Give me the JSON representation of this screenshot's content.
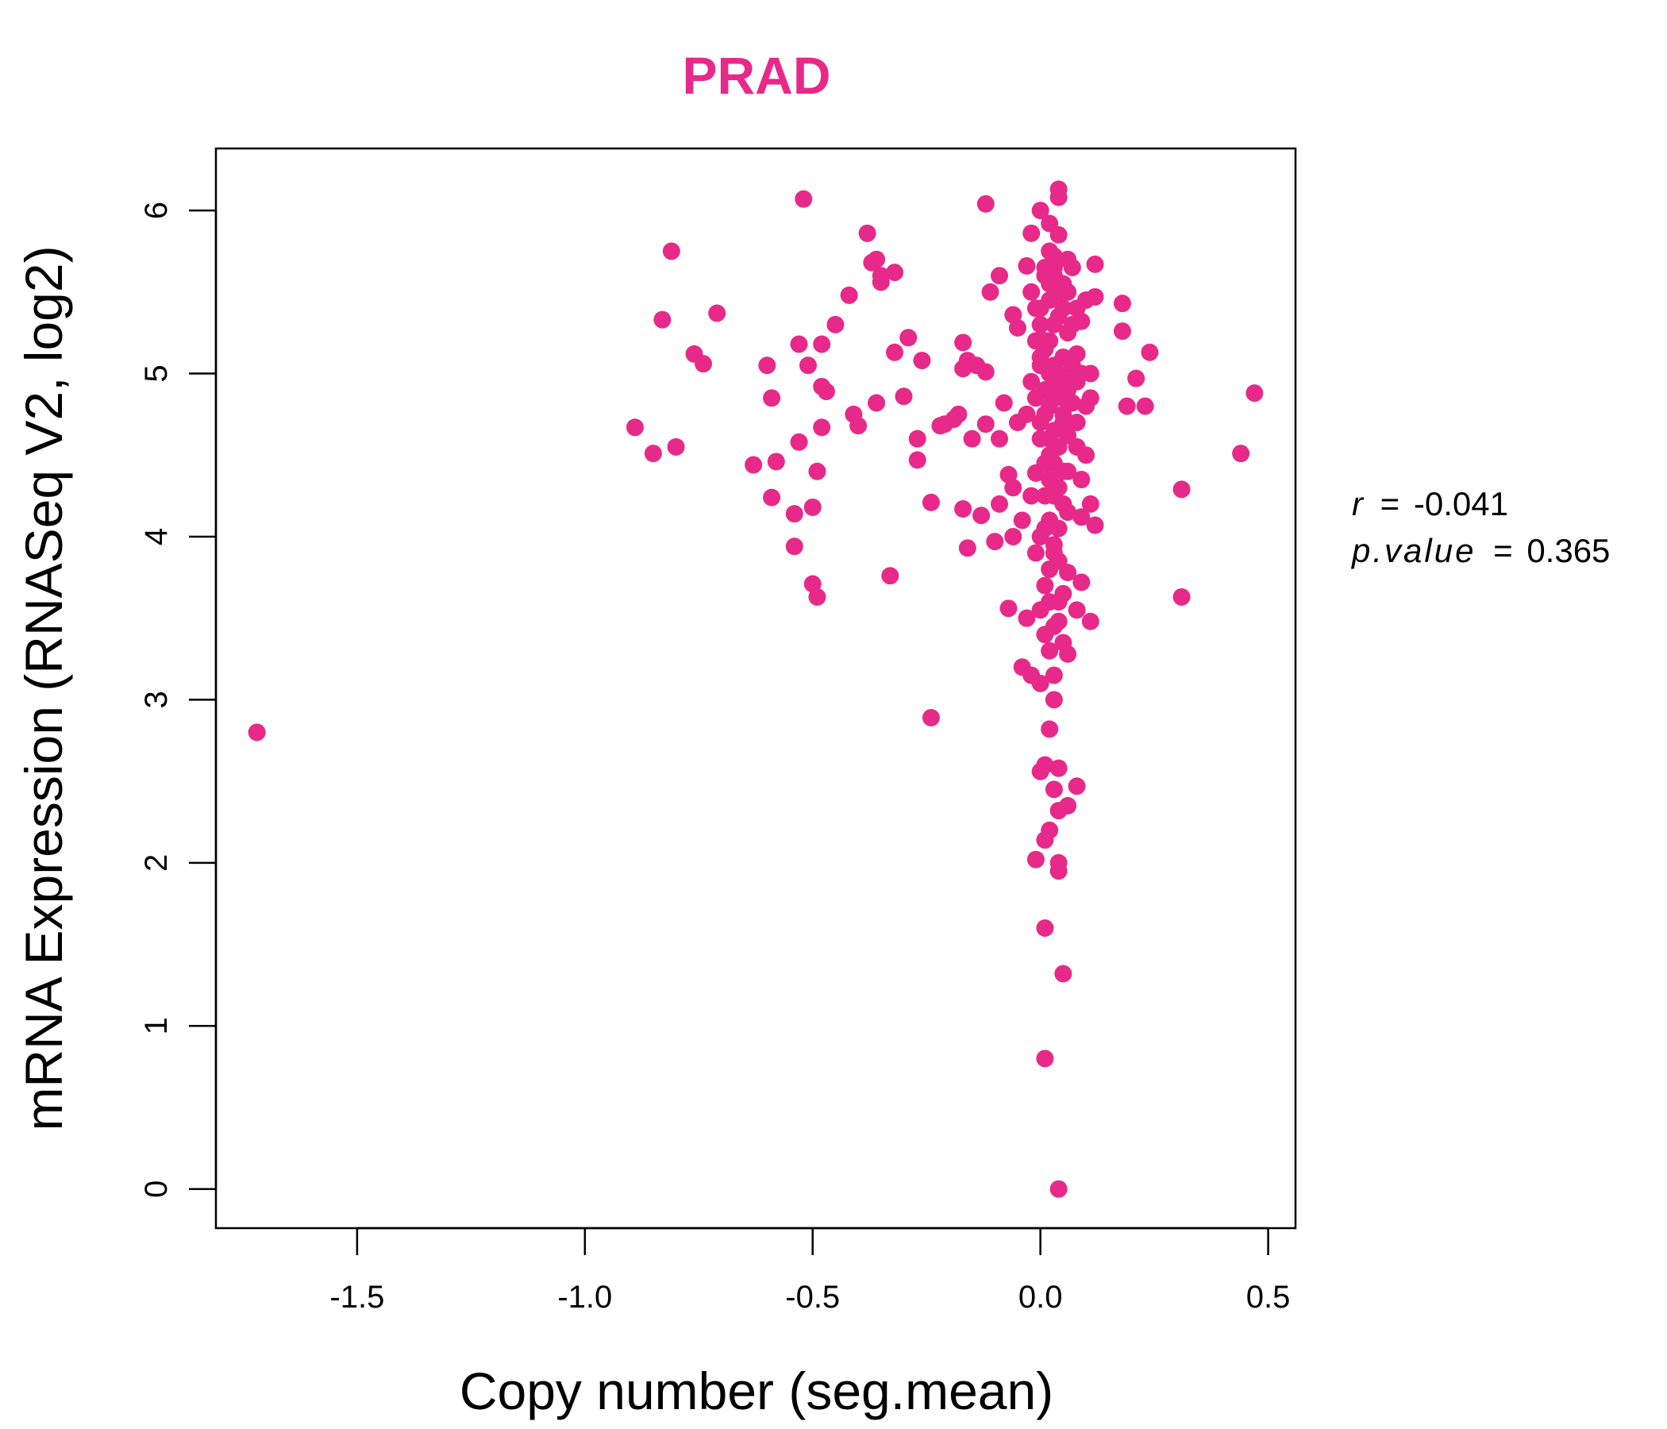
{
  "chart_data": {
    "type": "scatter",
    "title": "PRAD",
    "xlabel": "Copy number (seg.mean)",
    "ylabel": "mRNA Expression (RNASeq V2, log2)",
    "xlim": [
      -1.81,
      0.56
    ],
    "ylim": [
      -0.24,
      6.38
    ],
    "x_ticks": [
      -1.5,
      -1.0,
      -0.5,
      0.0,
      0.5
    ],
    "x_tick_labels": [
      "-1.5",
      "-1.0",
      "-0.5",
      "0.0",
      "0.5"
    ],
    "y_ticks": [
      0,
      1,
      2,
      3,
      4,
      5,
      6
    ],
    "y_tick_labels": [
      "0",
      "1",
      "2",
      "3",
      "4",
      "5",
      "6"
    ],
    "color": "#e7298a",
    "stats": {
      "r_label": "r",
      "r_value": "-0.041",
      "p_label": "p.value",
      "p_value": "0.365"
    },
    "points": [
      [
        -1.72,
        2.8
      ],
      [
        -0.89,
        4.67
      ],
      [
        -0.85,
        4.51
      ],
      [
        -0.83,
        5.33
      ],
      [
        -0.81,
        5.75
      ],
      [
        -0.8,
        4.55
      ],
      [
        -0.76,
        5.12
      ],
      [
        -0.74,
        5.06
      ],
      [
        -0.71,
        5.37
      ],
      [
        -0.63,
        4.44
      ],
      [
        -0.6,
        5.05
      ],
      [
        -0.59,
        4.85
      ],
      [
        -0.59,
        4.24
      ],
      [
        -0.58,
        4.46
      ],
      [
        -0.54,
        4.14
      ],
      [
        -0.54,
        3.94
      ],
      [
        -0.53,
        5.18
      ],
      [
        -0.53,
        4.58
      ],
      [
        -0.52,
        6.07
      ],
      [
        -0.51,
        5.05
      ],
      [
        -0.5,
        3.71
      ],
      [
        -0.5,
        4.18
      ],
      [
        -0.49,
        4.4
      ],
      [
        -0.49,
        3.63
      ],
      [
        -0.48,
        5.18
      ],
      [
        -0.48,
        4.67
      ],
      [
        -0.48,
        4.92
      ],
      [
        -0.47,
        4.89
      ],
      [
        -0.45,
        5.3
      ],
      [
        -0.42,
        5.48
      ],
      [
        -0.41,
        4.75
      ],
      [
        -0.4,
        4.68
      ],
      [
        -0.38,
        5.86
      ],
      [
        -0.37,
        5.68
      ],
      [
        -0.36,
        4.82
      ],
      [
        -0.36,
        5.7
      ],
      [
        -0.35,
        5.6
      ],
      [
        -0.35,
        5.56
      ],
      [
        -0.33,
        3.76
      ],
      [
        -0.32,
        5.62
      ],
      [
        -0.32,
        5.13
      ],
      [
        -0.29,
        5.22
      ],
      [
        -0.3,
        4.86
      ],
      [
        -0.27,
        4.6
      ],
      [
        -0.27,
        4.47
      ],
      [
        -0.26,
        5.08
      ],
      [
        -0.24,
        4.21
      ],
      [
        -0.24,
        2.89
      ],
      [
        -0.22,
        4.68
      ],
      [
        -0.21,
        4.69
      ],
      [
        -0.19,
        4.72
      ],
      [
        -0.18,
        4.75
      ],
      [
        -0.17,
        4.17
      ],
      [
        -0.17,
        5.19
      ],
      [
        -0.17,
        5.03
      ],
      [
        -0.16,
        3.93
      ],
      [
        -0.16,
        5.08
      ],
      [
        -0.15,
        4.6
      ],
      [
        -0.14,
        5.05
      ],
      [
        -0.13,
        4.13
      ],
      [
        -0.12,
        6.04
      ],
      [
        -0.12,
        5.01
      ],
      [
        -0.12,
        4.69
      ],
      [
        -0.11,
        5.5
      ],
      [
        -0.1,
        3.97
      ],
      [
        -0.09,
        5.6
      ],
      [
        -0.09,
        4.6
      ],
      [
        -0.09,
        4.2
      ],
      [
        -0.08,
        4.82
      ],
      [
        -0.07,
        4.38
      ],
      [
        -0.07,
        3.56
      ],
      [
        -0.06,
        5.36
      ],
      [
        -0.06,
        4.3
      ],
      [
        -0.06,
        4.0
      ],
      [
        -0.05,
        5.28
      ],
      [
        -0.05,
        4.7
      ],
      [
        -0.04,
        3.2
      ],
      [
        -0.04,
        4.1
      ],
      [
        -0.03,
        3.5
      ],
      [
        -0.03,
        5.66
      ],
      [
        -0.02,
        5.86
      ],
      [
        -0.02,
        3.15
      ],
      [
        -0.02,
        4.25
      ],
      [
        -0.01,
        3.9
      ],
      [
        -0.01,
        2.02
      ],
      [
        -0.01,
        4.39
      ],
      [
        0.0,
        6.0
      ],
      [
        0.0,
        3.1
      ],
      [
        0.0,
        2.56
      ],
      [
        0.0,
        4.0
      ],
      [
        0.0,
        4.7
      ],
      [
        0.0,
        5.05
      ],
      [
        0.0,
        5.4
      ],
      [
        0.01,
        2.14
      ],
      [
        0.01,
        3.4
      ],
      [
        0.01,
        1.6
      ],
      [
        0.01,
        0.8
      ],
      [
        0.01,
        2.6
      ],
      [
        0.01,
        3.7
      ],
      [
        0.01,
        4.25
      ],
      [
        0.01,
        4.9
      ],
      [
        0.01,
        5.2
      ],
      [
        0.01,
        5.6
      ],
      [
        0.02,
        5.92
      ],
      [
        0.02,
        3.3
      ],
      [
        0.02,
        2.2
      ],
      [
        0.02,
        2.82
      ],
      [
        0.02,
        3.6
      ],
      [
        0.02,
        4.1
      ],
      [
        0.02,
        4.6
      ],
      [
        0.02,
        5.0
      ],
      [
        0.02,
        5.45
      ],
      [
        0.02,
        5.75
      ],
      [
        0.03,
        3.0
      ],
      [
        0.03,
        2.45
      ],
      [
        0.03,
        3.15
      ],
      [
        0.03,
        3.9
      ],
      [
        0.03,
        4.45
      ],
      [
        0.03,
        4.85
      ],
      [
        0.03,
        5.3
      ],
      [
        0.03,
        5.65
      ],
      [
        0.04,
        6.13
      ],
      [
        0.04,
        6.08
      ],
      [
        0.04,
        2.32
      ],
      [
        0.04,
        2.0
      ],
      [
        0.04,
        1.95
      ],
      [
        0.04,
        0.0
      ],
      [
        0.04,
        2.58
      ],
      [
        0.04,
        3.48
      ],
      [
        0.04,
        3.6
      ],
      [
        0.04,
        4.05
      ],
      [
        0.04,
        4.55
      ],
      [
        0.04,
        4.95
      ],
      [
        0.04,
        5.5
      ],
      [
        0.04,
        5.85
      ],
      [
        0.05,
        1.32
      ],
      [
        0.05,
        3.35
      ],
      [
        0.05,
        4.2
      ],
      [
        0.05,
        4.7
      ],
      [
        0.05,
        5.1
      ],
      [
        0.05,
        5.55
      ],
      [
        0.06,
        2.35
      ],
      [
        0.06,
        3.28
      ],
      [
        0.06,
        3.78
      ],
      [
        0.06,
        4.4
      ],
      [
        0.06,
        4.9
      ],
      [
        0.06,
        5.25
      ],
      [
        0.07,
        5.65
      ],
      [
        0.07,
        5.3
      ],
      [
        0.08,
        4.55
      ],
      [
        0.08,
        2.47
      ],
      [
        0.08,
        3.55
      ],
      [
        0.08,
        4.7
      ],
      [
        0.08,
        5.12
      ],
      [
        0.09,
        5.32
      ],
      [
        0.09,
        4.35
      ],
      [
        0.09,
        3.72
      ],
      [
        0.09,
        4.12
      ],
      [
        0.1,
        4.5
      ],
      [
        0.1,
        4.8
      ],
      [
        0.1,
        5.45
      ],
      [
        0.11,
        4.85
      ],
      [
        0.11,
        5.0
      ],
      [
        0.11,
        3.48
      ],
      [
        0.11,
        4.2
      ],
      [
        0.12,
        5.67
      ],
      [
        0.12,
        5.47
      ],
      [
        0.12,
        4.07
      ],
      [
        0.18,
        5.43
      ],
      [
        0.18,
        5.26
      ],
      [
        0.19,
        4.8
      ],
      [
        0.21,
        4.97
      ],
      [
        0.23,
        4.8
      ],
      [
        0.24,
        5.13
      ],
      [
        0.31,
        4.29
      ],
      [
        0.31,
        3.63
      ],
      [
        0.44,
        4.51
      ],
      [
        0.47,
        4.88
      ],
      [
        0.0,
        4.6
      ],
      [
        0.01,
        4.75
      ],
      [
        0.02,
        4.8
      ],
      [
        0.03,
        4.9
      ],
      [
        0.05,
        4.85
      ],
      [
        0.06,
        4.95
      ],
      [
        0.0,
        5.1
      ],
      [
        0.01,
        5.15
      ],
      [
        0.02,
        5.2
      ],
      [
        0.03,
        5.05
      ],
      [
        0.04,
        5.0
      ],
      [
        0.05,
        4.75
      ],
      [
        0.07,
        4.82
      ],
      [
        0.08,
        4.95
      ],
      [
        0.02,
        4.5
      ],
      [
        0.03,
        4.65
      ],
      [
        0.01,
        4.45
      ],
      [
        0.06,
        4.62
      ],
      [
        0.07,
        5.05
      ],
      [
        0.0,
        5.3
      ],
      [
        -0.01,
        4.85
      ],
      [
        -0.02,
        4.95
      ],
      [
        -0.03,
        4.75
      ],
      [
        -0.01,
        5.2
      ],
      [
        0.04,
        4.3
      ],
      [
        0.02,
        4.35
      ],
      [
        0.05,
        4.4
      ],
      [
        0.03,
        4.25
      ],
      [
        0.06,
        4.15
      ],
      [
        0.01,
        4.05
      ],
      [
        0.03,
        3.95
      ],
      [
        0.04,
        3.85
      ],
      [
        0.02,
        3.8
      ],
      [
        0.05,
        3.65
      ],
      [
        0.0,
        3.55
      ],
      [
        0.03,
        3.45
      ],
      [
        0.04,
        5.35
      ],
      [
        0.05,
        5.4
      ],
      [
        0.06,
        5.5
      ],
      [
        0.02,
        5.55
      ],
      [
        0.03,
        5.6
      ],
      [
        0.01,
        5.65
      ],
      [
        0.06,
        5.7
      ],
      [
        0.03,
        5.72
      ],
      [
        -0.02,
        5.5
      ],
      [
        -0.01,
        5.4
      ],
      [
        0.08,
        5.4
      ],
      [
        0.09,
        5.0
      ]
    ]
  }
}
